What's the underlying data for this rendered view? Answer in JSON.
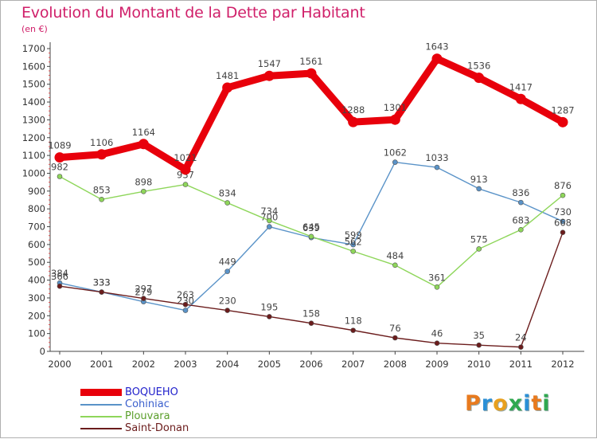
{
  "header": {
    "title": "Evolution du Montant de la Dette par Habitant",
    "subtitle": "(en €)"
  },
  "logo": {
    "text": "Proxiti",
    "letters": [
      {
        "ch": "P",
        "color": "#e87a1e"
      },
      {
        "ch": "r",
        "color": "#2b8fd6"
      },
      {
        "ch": "o",
        "color": "#e8a01e"
      },
      {
        "ch": "x",
        "color": "#2fa84f"
      },
      {
        "ch": "i",
        "color": "#2b8fd6"
      },
      {
        "ch": "t",
        "color": "#e87a1e"
      },
      {
        "ch": "i",
        "color": "#2fa84f"
      }
    ]
  },
  "chart_data": {
    "type": "line",
    "x": [
      "2000",
      "2001",
      "2002",
      "2003",
      "2004",
      "2005",
      "2006",
      "2007",
      "2008",
      "2009",
      "2010",
      "2011",
      "2012"
    ],
    "ylim": [
      0,
      1700
    ],
    "ytick_step": 100,
    "grid": false,
    "legend_position": "bottom-left",
    "series": [
      {
        "name": "BOQUEHO",
        "color": "#e8000b",
        "label_color": "#2222cc",
        "highlight": true,
        "values": [
          1089,
          1106,
          1164,
          1021,
          1481,
          1547,
          1561,
          1288,
          1301,
          1643,
          1536,
          1417,
          1287
        ]
      },
      {
        "name": "Cohiniac",
        "color": "#5a93c8",
        "label_color": "#3a5fcd",
        "highlight": false,
        "values": [
          384,
          333,
          279,
          230,
          449,
          700,
          639,
          599,
          1062,
          1033,
          913,
          836,
          730
        ]
      },
      {
        "name": "Plouvara",
        "color": "#8ed65a",
        "label_color": "#5a9e2a",
        "highlight": false,
        "values": [
          982,
          853,
          898,
          937,
          834,
          734,
          645,
          562,
          484,
          361,
          575,
          683,
          876
        ]
      },
      {
        "name": "Saint-Donan",
        "color": "#6b1c1c",
        "label_color": "#6b1c1c",
        "highlight": false,
        "values": [
          366,
          333,
          297,
          263,
          230,
          195,
          158,
          118,
          76,
          46,
          35,
          24,
          668
        ]
      }
    ]
  }
}
